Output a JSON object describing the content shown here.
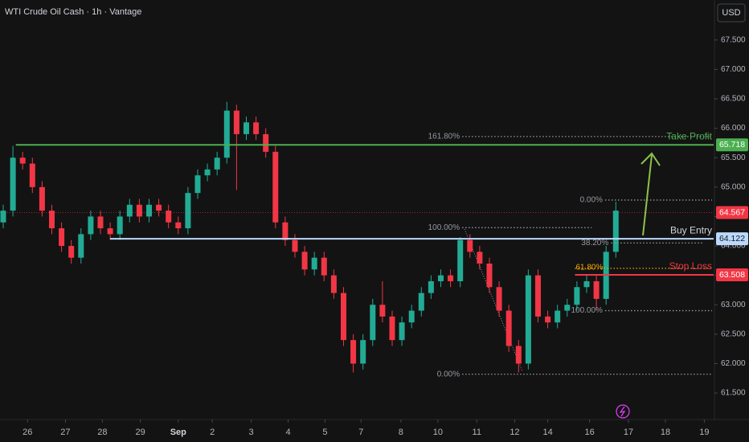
{
  "chart_data": {
    "type": "candlestick",
    "title": "WTI Crude Oil Cash · 1h · Vantage",
    "currency": "USD",
    "up_color": "#22ab94",
    "down_color": "#f23645",
    "xlim": [
      -0.33,
      73.06
    ],
    "xticks": [
      {
        "value": 2.5,
        "label": "26"
      },
      {
        "value": 6.4,
        "label": "27"
      },
      {
        "value": 10.2,
        "label": "28"
      },
      {
        "value": 14.1,
        "label": "29"
      },
      {
        "value": 18,
        "label": "Sep"
      },
      {
        "value": 21.5,
        "label": "2"
      },
      {
        "value": 25.5,
        "label": "3"
      },
      {
        "value": 29.3,
        "label": "4"
      },
      {
        "value": 33.1,
        "label": "5"
      },
      {
        "value": 36.8,
        "label": "7"
      },
      {
        "value": 40.9,
        "label": "8"
      },
      {
        "value": 44.7,
        "label": "10"
      },
      {
        "value": 48.7,
        "label": "11"
      },
      {
        "value": 52.6,
        "label": "12"
      },
      {
        "value": 56,
        "label": "14"
      },
      {
        "value": 60.3,
        "label": "16"
      },
      {
        "value": 64.3,
        "label": "17"
      },
      {
        "value": 68.1,
        "label": "18"
      },
      {
        "value": 72.1,
        "label": "19"
      }
    ],
    "ylim": [
      61.05,
      68.18
    ],
    "yticks": [
      {
        "value": 61.5,
        "label": "61.500"
      },
      {
        "value": 62,
        "label": "62.000"
      },
      {
        "value": 62.5,
        "label": "62.500"
      },
      {
        "value": 63,
        "label": "63.000"
      },
      {
        "value": 63.5,
        "label": "63.500"
      },
      {
        "value": 64,
        "label": "64.000"
      },
      {
        "value": 64.5,
        "label": "64.500"
      },
      {
        "value": 65,
        "label": "65.000"
      },
      {
        "value": 65.5,
        "label": "65.500"
      },
      {
        "value": 66,
        "label": "66.000"
      },
      {
        "value": 66.5,
        "label": "66.500"
      },
      {
        "value": 67,
        "label": "67.000"
      },
      {
        "value": 67.5,
        "label": "67.500"
      }
    ],
    "candles": [
      [
        64.4,
        64.7,
        64.3,
        64.6
      ],
      [
        64.6,
        65.7,
        64.5,
        65.5
      ],
      [
        65.5,
        65.6,
        65.3,
        65.4
      ],
      [
        65.4,
        65.5,
        64.9,
        65.0
      ],
      [
        65.0,
        65.1,
        64.5,
        64.6
      ],
      [
        64.6,
        64.7,
        64.2,
        64.3
      ],
      [
        64.3,
        64.4,
        63.9,
        64.0
      ],
      [
        64.0,
        64.1,
        63.7,
        63.8
      ],
      [
        63.8,
        64.3,
        63.7,
        64.2
      ],
      [
        64.2,
        64.6,
        64.1,
        64.5
      ],
      [
        64.5,
        64.6,
        64.2,
        64.3
      ],
      [
        64.3,
        64.4,
        64.1,
        64.2
      ],
      [
        64.2,
        64.6,
        64.1,
        64.5
      ],
      [
        64.5,
        64.8,
        64.4,
        64.7
      ],
      [
        64.7,
        64.8,
        64.4,
        64.5
      ],
      [
        64.5,
        64.8,
        64.4,
        64.7
      ],
      [
        64.7,
        64.8,
        64.5,
        64.6
      ],
      [
        64.6,
        64.7,
        64.3,
        64.4
      ],
      [
        64.4,
        64.5,
        64.2,
        64.3
      ],
      [
        64.3,
        65.0,
        64.2,
        64.9
      ],
      [
        64.9,
        65.3,
        64.8,
        65.2
      ],
      [
        65.2,
        65.4,
        65.1,
        65.3
      ],
      [
        65.3,
        65.6,
        65.2,
        65.5
      ],
      [
        65.5,
        66.45,
        65.4,
        66.3
      ],
      [
        66.3,
        66.4,
        64.95,
        65.9
      ],
      [
        65.9,
        66.2,
        65.8,
        66.1
      ],
      [
        66.1,
        66.2,
        65.8,
        65.9
      ],
      [
        65.9,
        66.0,
        65.5,
        65.6
      ],
      [
        65.6,
        65.7,
        64.3,
        64.4
      ],
      [
        64.4,
        64.5,
        64.0,
        64.1
      ],
      [
        64.1,
        64.2,
        63.8,
        63.9
      ],
      [
        63.9,
        64.0,
        63.5,
        63.6
      ],
      [
        63.6,
        63.9,
        63.5,
        63.8
      ],
      [
        63.8,
        63.9,
        63.4,
        63.5
      ],
      [
        63.5,
        63.6,
        63.1,
        63.2
      ],
      [
        63.2,
        63.3,
        62.3,
        62.4
      ],
      [
        62.4,
        62.5,
        61.85,
        62.0
      ],
      [
        62.0,
        62.5,
        61.9,
        62.4
      ],
      [
        62.4,
        63.1,
        62.3,
        63.0
      ],
      [
        63.0,
        63.4,
        62.7,
        62.8
      ],
      [
        62.8,
        62.9,
        62.3,
        62.4
      ],
      [
        62.4,
        62.8,
        62.3,
        62.7
      ],
      [
        62.7,
        63.0,
        62.6,
        62.9
      ],
      [
        62.9,
        63.3,
        62.8,
        63.2
      ],
      [
        63.2,
        63.5,
        63.1,
        63.4
      ],
      [
        63.4,
        63.6,
        63.3,
        63.5
      ],
      [
        63.5,
        63.6,
        63.3,
        63.4
      ],
      [
        63.4,
        64.15,
        63.3,
        64.1
      ],
      [
        64.1,
        64.2,
        63.8,
        63.9
      ],
      [
        63.9,
        64.0,
        63.6,
        63.7
      ],
      [
        63.7,
        63.8,
        63.2,
        63.3
      ],
      [
        63.3,
        63.4,
        62.8,
        62.9
      ],
      [
        62.9,
        63.0,
        62.2,
        62.3
      ],
      [
        62.3,
        62.4,
        61.85,
        62.0
      ],
      [
        62.0,
        63.6,
        61.9,
        63.5
      ],
      [
        63.5,
        63.6,
        62.7,
        62.8
      ],
      [
        62.8,
        62.9,
        62.6,
        62.7
      ],
      [
        62.7,
        63.0,
        62.6,
        62.9
      ],
      [
        62.9,
        63.1,
        62.8,
        63.0
      ],
      [
        63.0,
        63.4,
        62.9,
        63.3
      ],
      [
        63.3,
        63.5,
        63.2,
        63.4
      ],
      [
        63.4,
        63.5,
        62.9,
        63.1
      ],
      [
        63.1,
        64.0,
        63.0,
        63.9
      ],
      [
        63.9,
        64.75,
        63.8,
        64.6
      ]
    ],
    "last": 64.567,
    "last_color": "#f23645",
    "levels": [
      {
        "name": "Take Profit",
        "value": 65.718,
        "color": "#4caf50"
      },
      {
        "name": "Buy Entry",
        "value": 64.122,
        "color": "#bbd9fb"
      },
      {
        "name": "Stop Loss",
        "value": 63.508,
        "color": "#f23645"
      }
    ],
    "fibs": [
      {
        "label": "161.80%",
        "value": 65.86,
        "color": "#9598a1"
      },
      {
        "label": "100.00%",
        "value": 64.31,
        "color": "#9598a1"
      },
      {
        "label": "0.00%",
        "value": 61.82,
        "color": "#9598a1"
      },
      {
        "label": "0.00%",
        "value": 64.78,
        "color": "#9598a1"
      },
      {
        "label": "38.20%",
        "value": 64.05,
        "color": "#9598a1"
      },
      {
        "label": "61.80%",
        "value": 63.62,
        "color": "#f7a600"
      },
      {
        "label": "100.00%",
        "value": 62.9,
        "color": "#9598a1"
      }
    ]
  }
}
